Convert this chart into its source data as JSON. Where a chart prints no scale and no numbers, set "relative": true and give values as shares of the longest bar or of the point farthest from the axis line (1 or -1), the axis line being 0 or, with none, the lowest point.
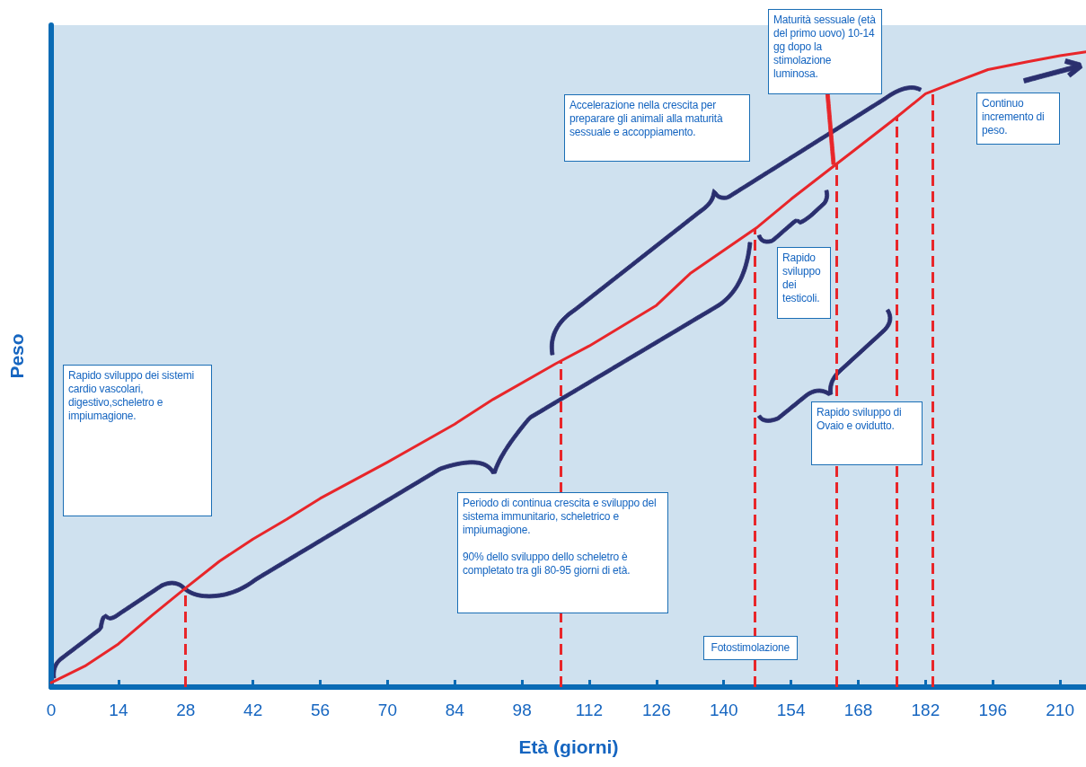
{
  "chart_data": {
    "type": "line",
    "relative": true,
    "xlabel": "Età (giorni)",
    "ylabel": "Peso",
    "x": [
      0,
      7,
      14,
      21,
      28,
      35,
      42,
      49,
      56,
      70,
      84,
      92,
      105,
      112,
      126,
      133,
      147,
      154,
      161,
      167,
      175,
      182,
      189,
      195,
      203,
      210,
      215.4
    ],
    "series": [
      {
        "color": "#e8262a",
        "values": [
          0.007,
          0.033,
          0.068,
          0.113,
          0.156,
          0.198,
          0.233,
          0.264,
          0.297,
          0.354,
          0.414,
          0.453,
          0.509,
          0.537,
          0.601,
          0.651,
          0.724,
          0.768,
          0.809,
          0.844,
          0.891,
          0.934,
          0.955,
          0.972,
          0.984,
          0.994,
          1
        ]
      }
    ],
    "xlim": [
      0,
      215.4
    ],
    "xticks": [
      0,
      14,
      28,
      42,
      56,
      70,
      84,
      98,
      112,
      126,
      140,
      154,
      168,
      182,
      196,
      210
    ],
    "grid": false,
    "marker": "none",
    "line_style": "solid",
    "ref_lines": [
      {
        "axis": "x",
        "value": 28,
        "color": "#e8262a",
        "line_style": "dashed"
      },
      {
        "axis": "x",
        "value": 106,
        "color": "#e8262a",
        "line_style": "dashed"
      },
      {
        "axis": "x",
        "value": 146.5,
        "label": "Fotostimolazione",
        "color": "#e8262a",
        "line_style": "dashed"
      },
      {
        "axis": "x",
        "value": 163.5,
        "color": "#e8262a",
        "line_style": "dashed"
      },
      {
        "axis": "x",
        "value": 176,
        "color": "#e8262a",
        "line_style": "dashed"
      },
      {
        "axis": "x",
        "value": 183.5,
        "color": "#e8262a",
        "line_style": "dashed"
      }
    ],
    "annotations": [
      "Rapido sviluppo dei sistemi cardio vascolari, digestivo,scheletro e impiumagione.",
      "Periodo di continua crescita e sviluppo del sistema immunitario, scheletrico e impiumagione.\n\n90% dello sviluppo dello scheletro è completato tra gli 80-95 giorni di età.",
      "Accelerazione nella crescita per preparare gli animali alla maturità sessuale e accoppiamento.",
      "Maturità sessuale (età del primo uovo) 10-14 gg dopo la stimolazione luminosa.",
      "Rapido sviluppo dei testicoli.",
      "Rapido sviluppo di Ovaio e ovidutto.",
      "Continuo incremento di peso."
    ]
  }
}
